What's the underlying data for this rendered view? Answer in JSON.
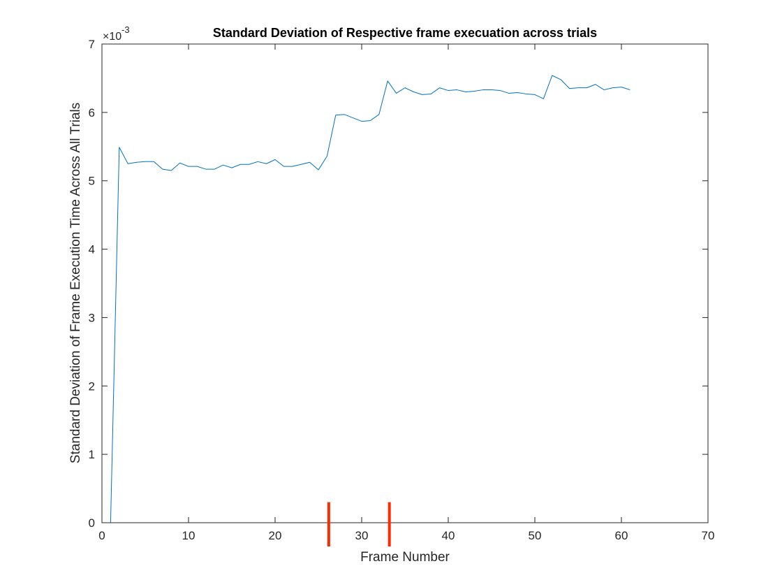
{
  "chart_data": {
    "type": "line",
    "title": "Standard Deviation of Respective frame execuation across trials",
    "xlabel": "Frame Number",
    "ylabel": "Standard Deviation of Frame Execution Time Across All Trials",
    "exponent_base": "×10",
    "exponent_power": "-3",
    "xlim": [
      0,
      70
    ],
    "ylim": [
      0,
      7
    ],
    "x_ticks": [
      0,
      10,
      20,
      30,
      40,
      50,
      60,
      70
    ],
    "y_ticks": [
      0,
      1,
      2,
      3,
      4,
      5,
      6,
      7
    ],
    "grid": false,
    "box": true,
    "series": [
      {
        "color": "#0072bd",
        "x": [
          1,
          2,
          3,
          4,
          5,
          6,
          7,
          8,
          9,
          10,
          11,
          12,
          13,
          14,
          15,
          16,
          17,
          18,
          19,
          20,
          21,
          22,
          23,
          24,
          25,
          26,
          27,
          28,
          29,
          30,
          31,
          32,
          33,
          34,
          35,
          36,
          37,
          38,
          39,
          40,
          41,
          42,
          43,
          44,
          45,
          46,
          47,
          48,
          49,
          50,
          51,
          52,
          53,
          54,
          55,
          56,
          57,
          58,
          59,
          60,
          61
        ],
        "values": [
          0,
          5.49,
          5.25,
          5.27,
          5.28,
          5.28,
          5.17,
          5.15,
          5.26,
          5.21,
          5.21,
          5.17,
          5.17,
          5.23,
          5.19,
          5.24,
          5.24,
          5.28,
          5.25,
          5.31,
          5.21,
          5.21,
          5.24,
          5.27,
          5.16,
          5.36,
          5.96,
          5.97,
          5.92,
          5.87,
          5.88,
          5.97,
          6.46,
          6.28,
          6.36,
          6.3,
          6.26,
          6.27,
          6.36,
          6.32,
          6.33,
          6.3,
          6.31,
          6.33,
          6.33,
          6.32,
          6.28,
          6.29,
          6.27,
          6.26,
          6.2,
          6.54,
          6.48,
          6.35,
          6.36,
          6.36,
          6.41,
          6.33,
          6.36,
          6.37,
          6.33
        ]
      }
    ],
    "markers": [
      {
        "color": "#ff2a00",
        "x": 26.2,
        "y_from": 0,
        "y_to": 0.3
      },
      {
        "color": "#ff2a00",
        "x": 33.2,
        "y_from": 0,
        "y_to": 0.3
      }
    ]
  }
}
